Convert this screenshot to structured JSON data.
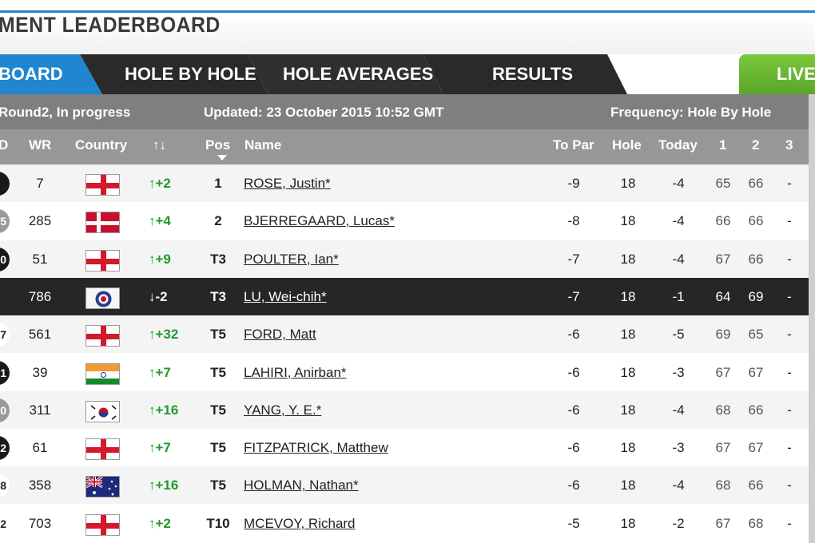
{
  "page": {
    "title": "MENT LEADERBOARD"
  },
  "tabs": {
    "leaderboard": "BOARD",
    "hole_by_hole": "HOLE BY HOLE",
    "hole_averages": "HOLE AVERAGES",
    "results": "RESULTS",
    "live": "LIVE"
  },
  "status": {
    "round": "Round2, In progress",
    "updated": "Updated: 23 October 2015 10:52 GMT",
    "frequency": "Frequency: Hole By Hole"
  },
  "columns": {
    "d": "D",
    "wr": "WR",
    "country": "Country",
    "move": "↑↓",
    "pos": "Pos",
    "name": "Name",
    "to_par": "To Par",
    "hole": "Hole",
    "today": "Today",
    "r1": "1",
    "r2": "2",
    "r3": "3"
  },
  "rows": [
    {
      "badge": "",
      "badge_color": "#1a1a1a",
      "wr": "7",
      "flag": "england",
      "move": "↑+2",
      "dir": "up",
      "pos": "1",
      "name": "ROSE, Justin*",
      "to_par": "-9",
      "hole": "18",
      "today": "-4",
      "r1": "65",
      "r2": "66",
      "r3": "-"
    },
    {
      "badge": "5",
      "badge_color": "#9a9a9a",
      "wr": "285",
      "flag": "denmark",
      "move": "↑+4",
      "dir": "up",
      "pos": "2",
      "name": "BJERREGAARD, Lucas*",
      "to_par": "-8",
      "hole": "18",
      "today": "-4",
      "r1": "66",
      "r2": "66",
      "r3": "-"
    },
    {
      "badge": "0",
      "badge_color": "#1a1a1a",
      "wr": "51",
      "flag": "england",
      "move": "↑+9",
      "dir": "up",
      "pos": "T3",
      "name": "POULTER, Ian*",
      "to_par": "-7",
      "hole": "18",
      "today": "-4",
      "r1": "67",
      "r2": "66",
      "r3": "-"
    },
    {
      "badge": "",
      "badge_color": "#262626",
      "wr": "786",
      "flag": "taipei",
      "move": "↓-2",
      "dir": "dn",
      "pos": "T3",
      "name": "LU, Wei-chih*",
      "to_par": "-7",
      "hole": "18",
      "today": "-1",
      "r1": "64",
      "r2": "69",
      "r3": "-"
    },
    {
      "badge": "7",
      "badge_color": "#ffffff",
      "wr": "561",
      "flag": "england",
      "move": "↑+32",
      "dir": "up",
      "pos": "T5",
      "name": "FORD, Matt",
      "to_par": "-6",
      "hole": "18",
      "today": "-5",
      "r1": "69",
      "r2": "65",
      "r3": "-"
    },
    {
      "badge": "1",
      "badge_color": "#1a1a1a",
      "wr": "39",
      "flag": "india",
      "move": "↑+7",
      "dir": "up",
      "pos": "T5",
      "name": "LAHIRI, Anirban*",
      "to_par": "-6",
      "hole": "18",
      "today": "-3",
      "r1": "67",
      "r2": "67",
      "r3": "-"
    },
    {
      "badge": "0",
      "badge_color": "#9a9a9a",
      "wr": "311",
      "flag": "korea",
      "move": "↑+16",
      "dir": "up",
      "pos": "T5",
      "name": "YANG, Y. E.*",
      "to_par": "-6",
      "hole": "18",
      "today": "-4",
      "r1": "68",
      "r2": "66",
      "r3": "-"
    },
    {
      "badge": "2",
      "badge_color": "#1a1a1a",
      "wr": "61",
      "flag": "england",
      "move": "↑+7",
      "dir": "up",
      "pos": "T5",
      "name": "FITZPATRICK, Matthew",
      "to_par": "-6",
      "hole": "18",
      "today": "-3",
      "r1": "67",
      "r2": "67",
      "r3": "-"
    },
    {
      "badge": "8",
      "badge_color": "#ffffff",
      "wr": "358",
      "flag": "australia",
      "move": "↑+16",
      "dir": "up",
      "pos": "T5",
      "name": "HOLMAN, Nathan*",
      "to_par": "-6",
      "hole": "18",
      "today": "-4",
      "r1": "68",
      "r2": "66",
      "r3": "-"
    },
    {
      "badge": "2",
      "badge_color": "#ffffff",
      "wr": "703",
      "flag": "england",
      "move": "↑+2",
      "dir": "up",
      "pos": "T10",
      "name": "MCEVOY, Richard",
      "to_par": "-5",
      "hole": "18",
      "today": "-2",
      "r1": "67",
      "r2": "68",
      "r3": "-"
    }
  ],
  "colors": {
    "accent_blue": "#2a86c8",
    "live_green": "#6bb832",
    "up_green": "#1f9a2a",
    "highlight_row": "#262626"
  }
}
